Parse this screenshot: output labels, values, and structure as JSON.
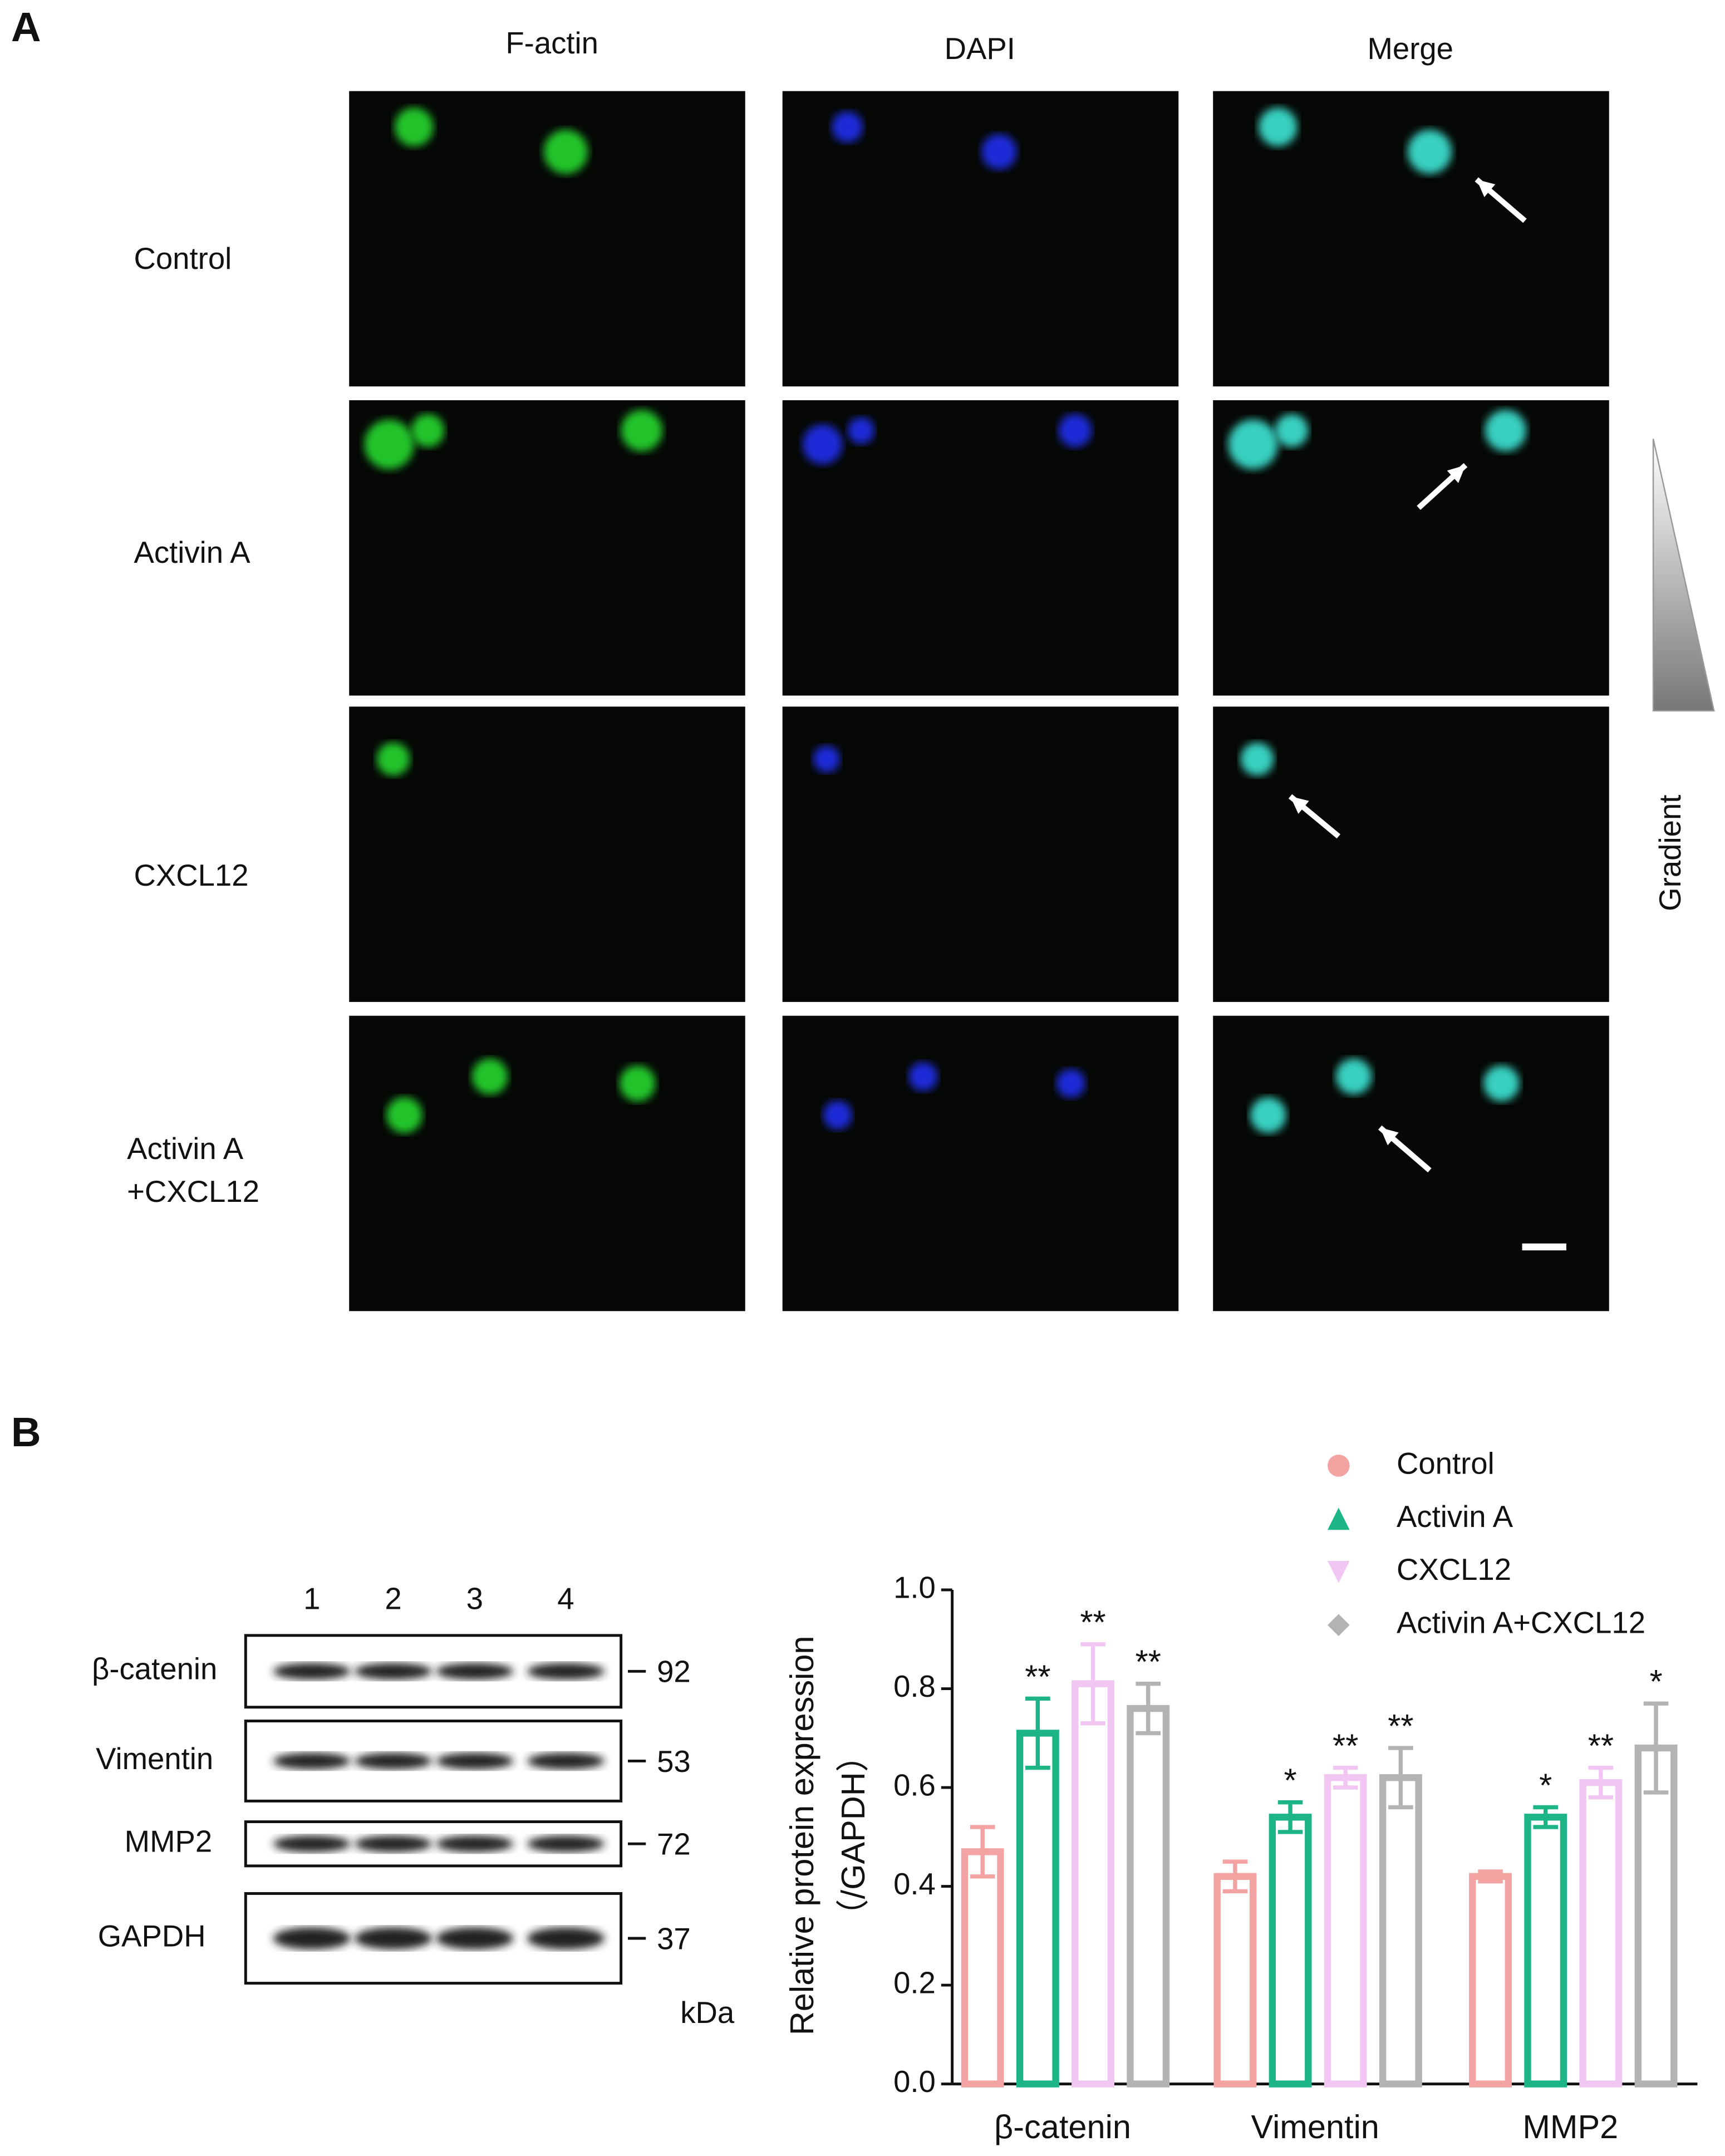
{
  "panel_a": {
    "label": "A",
    "columns": [
      "F-actin",
      "DAPI",
      "Merge"
    ],
    "rows": [
      [
        "Control"
      ],
      [
        "Activin A"
      ],
      [
        "CXCL12"
      ],
      [
        "Activin A",
        "+CXCL12"
      ]
    ],
    "gradient_label": "Gradient"
  },
  "blot": {
    "label": "B",
    "lanes": [
      "1",
      "2",
      "3",
      "4"
    ],
    "proteins": [
      "β-catenin",
      "Vimentin",
      "MMP2",
      "GAPDH"
    ],
    "kda": [
      "92",
      "53",
      "72",
      "37"
    ],
    "unit": "kDa"
  },
  "chart_data": {
    "type": "bar",
    "ylabel": [
      "Relative protein expression",
      "（/GAPDH）"
    ],
    "categories": [
      "β-catenin",
      "Vimentin",
      "MMP2"
    ],
    "series": [
      {
        "name": "Control",
        "color": "#f4a3a3",
        "marker": "circle",
        "values": [
          0.47,
          0.42,
          0.42
        ],
        "errors": [
          0.05,
          0.03,
          0.01
        ]
      },
      {
        "name": "Activin A",
        "color": "#1db586",
        "marker": "triangle-up",
        "values": [
          0.71,
          0.54,
          0.54
        ],
        "errors": [
          0.07,
          0.03,
          0.02
        ],
        "significance": [
          "**",
          "*",
          "*"
        ]
      },
      {
        "name": "CXCL12",
        "color": "#f2c6f2",
        "marker": "triangle-down",
        "values": [
          0.81,
          0.62,
          0.61
        ],
        "errors": [
          0.08,
          0.02,
          0.03
        ],
        "significance": [
          "**",
          "**",
          "**"
        ]
      },
      {
        "name": "Activin A+CXCL12",
        "color": "#b3b3b3",
        "marker": "diamond",
        "values": [
          0.76,
          0.62,
          0.68
        ],
        "errors": [
          0.05,
          0.06,
          0.09
        ],
        "significance": [
          "**",
          "**",
          "*"
        ]
      }
    ],
    "ylim": [
      0,
      1
    ],
    "yticks": [
      {
        "value": 0,
        "label": "0.0"
      },
      0.2,
      0.4,
      0.6,
      0.8,
      {
        "value": 1,
        "label": "1.0"
      }
    ]
  }
}
